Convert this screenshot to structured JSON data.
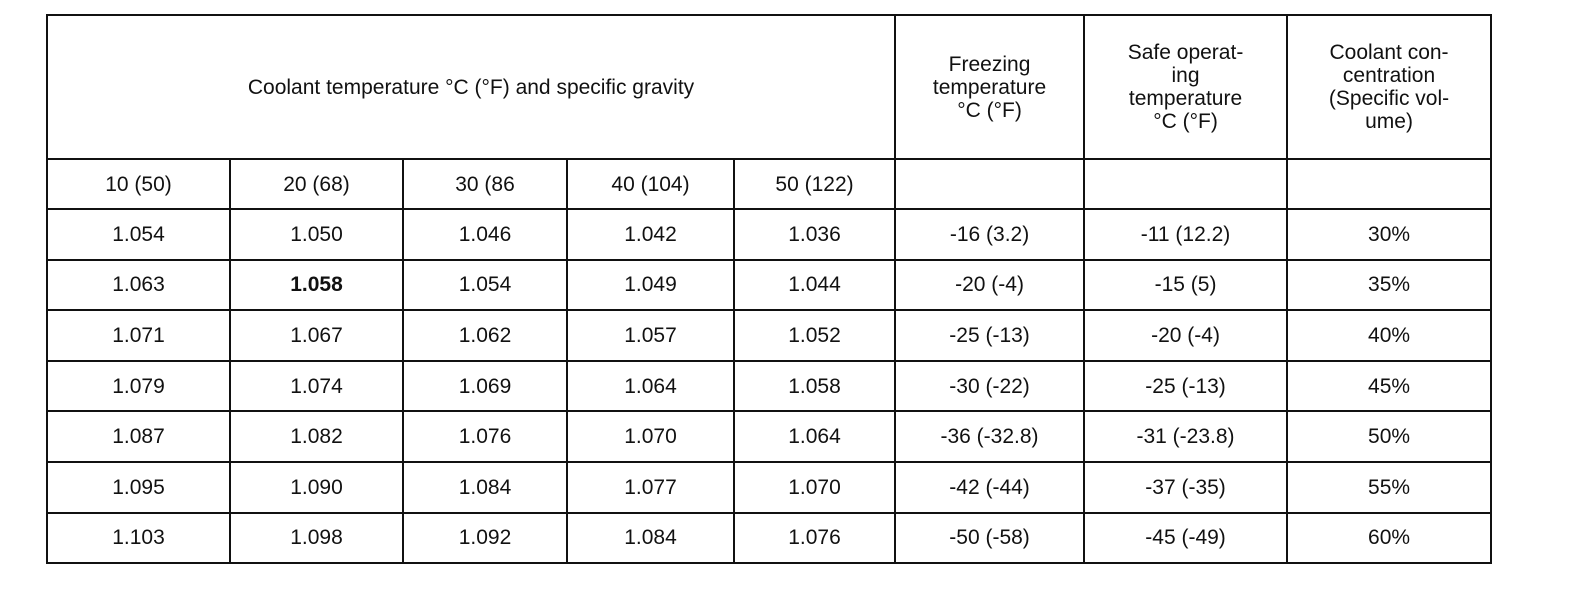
{
  "table": {
    "header": [
      "Coolant temperature °C (°F) and specific gravity",
      [
        "Freezing",
        "temperature",
        "°C (°F)"
      ],
      [
        "Safe operat-",
        "ing",
        "temperature",
        "°C (°F)"
      ],
      [
        "Coolant con-",
        "centration",
        "(Specific vol-",
        "ume)"
      ]
    ],
    "temperatures": [
      "10 (50)",
      "20 (68)",
      "30 (86",
      "40 (104)",
      "50 (122)"
    ],
    "rows": [
      [
        "1.054",
        "1.050",
        "1.046",
        "1.042",
        "1.036",
        "-16 (3.2)",
        "-11 (12.2)",
        "30%"
      ],
      [
        "1.063",
        "1.058",
        "1.054",
        "1.049",
        "1.044",
        "-20 (-4)",
        "-15 (5)",
        "35%"
      ],
      [
        "1.071",
        "1.067",
        "1.062",
        "1.057",
        "1.052",
        "-25 (-13)",
        "-20 (-4)",
        "40%"
      ],
      [
        "1.079",
        "1.074",
        "1.069",
        "1.064",
        "1.058",
        "-30 (-22)",
        "-25 (-13)",
        "45%"
      ],
      [
        "1.087",
        "1.082",
        "1.076",
        "1.070",
        "1.064",
        "-36 (-32.8)",
        "-31 (-23.8)",
        "50%"
      ],
      [
        "1.095",
        "1.090",
        "1.084",
        "1.077",
        "1.070",
        "-42 (-44)",
        "-37 (-35)",
        "55%"
      ],
      [
        "1.103",
        "1.098",
        "1.092",
        "1.084",
        "1.076",
        "-50 (-58)",
        "-45 (-49)",
        "60%"
      ]
    ]
  }
}
